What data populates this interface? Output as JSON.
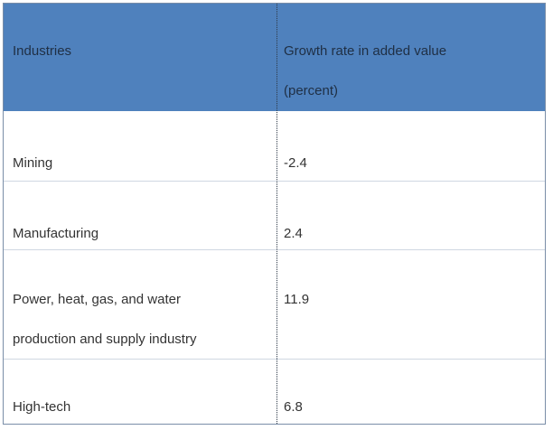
{
  "table": {
    "headers": {
      "industries": "Industries",
      "growth_line1": "Growth rate in added value",
      "growth_line2": "(percent)"
    },
    "rows": [
      {
        "industry": "Mining",
        "industry_line2": "",
        "growth": "-2.4"
      },
      {
        "industry": "Manufacturing",
        "industry_line2": "",
        "growth": "2.4"
      },
      {
        "industry": "Power, heat, gas, and water",
        "industry_line2": "production and supply industry",
        "growth": "11.9"
      },
      {
        "industry": "High-tech",
        "industry_line2": "",
        "growth": "6.8"
      }
    ]
  },
  "colors": {
    "header_bg": "#4f81bd",
    "border": "#7a8ea8"
  }
}
